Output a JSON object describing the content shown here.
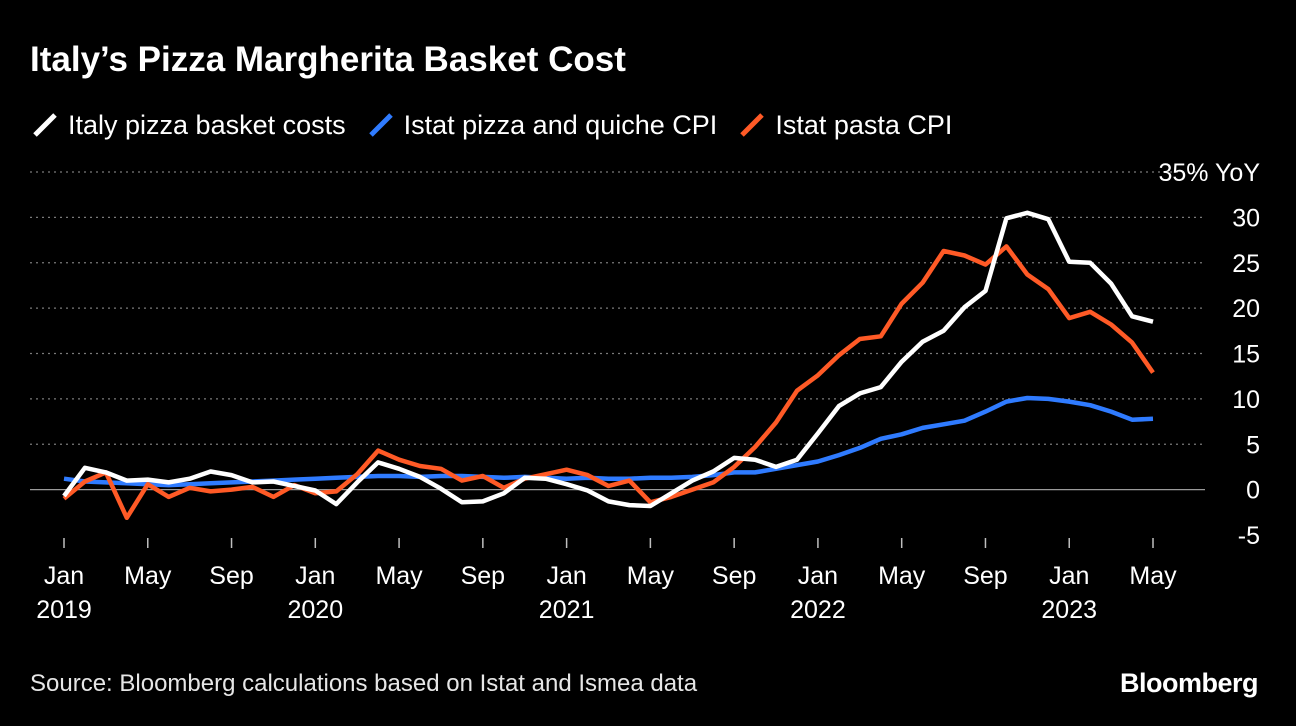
{
  "title": "Italy’s Pizza Margherita Basket Cost",
  "source": "Source: Bloomberg calculations based on Istat and Ismea data",
  "brand": "Bloomberg",
  "colors": {
    "background": "#000000",
    "grid": "#7a7a7a",
    "text": "#ffffff"
  },
  "chart_data": {
    "type": "line",
    "title": "Italy’s Pizza Margherita Basket Cost",
    "ylabel": "35% YoY",
    "ylim": [
      -5,
      35
    ],
    "y_ticks": [
      {
        "value": 35,
        "label": "35% YoY"
      },
      {
        "value": 30,
        "label": "30"
      },
      {
        "value": 25,
        "label": "25"
      },
      {
        "value": 20,
        "label": "20"
      },
      {
        "value": 15,
        "label": "15"
      },
      {
        "value": 10,
        "label": "10"
      },
      {
        "value": 5,
        "label": "5"
      },
      {
        "value": 0,
        "label": "0"
      },
      {
        "value": -5,
        "label": "-5"
      }
    ],
    "x_ticks": [
      {
        "index": 0,
        "label": "Jan",
        "year": "2019"
      },
      {
        "index": 4,
        "label": "May",
        "year": ""
      },
      {
        "index": 8,
        "label": "Sep",
        "year": ""
      },
      {
        "index": 12,
        "label": "Jan",
        "year": "2020"
      },
      {
        "index": 16,
        "label": "May",
        "year": ""
      },
      {
        "index": 20,
        "label": "Sep",
        "year": ""
      },
      {
        "index": 24,
        "label": "Jan",
        "year": "2021"
      },
      {
        "index": 28,
        "label": "May",
        "year": ""
      },
      {
        "index": 32,
        "label": "Sep",
        "year": ""
      },
      {
        "index": 36,
        "label": "Jan",
        "year": "2022"
      },
      {
        "index": 40,
        "label": "May",
        "year": ""
      },
      {
        "index": 44,
        "label": "Sep",
        "year": ""
      },
      {
        "index": 48,
        "label": "Jan",
        "year": "2023"
      },
      {
        "index": 52,
        "label": "May",
        "year": ""
      }
    ],
    "x": [
      "2019-01",
      "2019-02",
      "2019-03",
      "2019-04",
      "2019-05",
      "2019-06",
      "2019-07",
      "2019-08",
      "2019-09",
      "2019-10",
      "2019-11",
      "2019-12",
      "2020-01",
      "2020-02",
      "2020-03",
      "2020-04",
      "2020-05",
      "2020-06",
      "2020-07",
      "2020-08",
      "2020-09",
      "2020-10",
      "2020-11",
      "2020-12",
      "2021-01",
      "2021-02",
      "2021-03",
      "2021-04",
      "2021-05",
      "2021-06",
      "2021-07",
      "2021-08",
      "2021-09",
      "2021-10",
      "2021-11",
      "2021-12",
      "2022-01",
      "2022-02",
      "2022-03",
      "2022-04",
      "2022-05",
      "2022-06",
      "2022-07",
      "2022-08",
      "2022-09",
      "2022-10",
      "2022-11",
      "2022-12",
      "2023-01",
      "2023-02",
      "2023-03",
      "2023-04",
      "2023-05"
    ],
    "series": [
      {
        "name": "Istat pizza and quiche CPI",
        "color": "#2f7bff",
        "values": [
          1.2,
          0.9,
          0.8,
          0.7,
          0.6,
          0.5,
          0.6,
          0.7,
          0.8,
          0.9,
          1.0,
          1.1,
          1.2,
          1.3,
          1.4,
          1.5,
          1.5,
          1.4,
          1.5,
          1.5,
          1.4,
          1.3,
          1.4,
          1.3,
          1.2,
          1.3,
          1.2,
          1.2,
          1.3,
          1.3,
          1.4,
          1.6,
          1.9,
          1.9,
          2.3,
          2.7,
          3.1,
          3.8,
          4.6,
          5.6,
          6.1,
          6.8,
          7.2,
          7.6,
          8.6,
          9.7,
          10.1,
          10.0,
          9.7,
          9.3,
          8.6,
          7.7,
          7.8
        ]
      },
      {
        "name": "Istat pasta CPI",
        "color": "#ff5a26",
        "values": [
          -1.0,
          0.9,
          1.9,
          -3.1,
          0.6,
          -0.8,
          0.2,
          -0.2,
          0.0,
          0.3,
          -0.8,
          0.5,
          -0.4,
          -0.2,
          1.7,
          4.3,
          3.3,
          2.6,
          2.3,
          1.0,
          1.5,
          0.2,
          1.2,
          1.7,
          2.2,
          1.6,
          0.4,
          1.0,
          -1.4,
          -0.8,
          0.0,
          0.8,
          2.5,
          4.7,
          7.4,
          10.9,
          12.6,
          14.8,
          16.6,
          16.9,
          20.5,
          22.8,
          26.3,
          25.8,
          24.8,
          26.8,
          23.7,
          22.1,
          18.9,
          19.6,
          18.2,
          16.2,
          12.9
        ]
      },
      {
        "name": "Italy pizza basket costs",
        "color": "#ffffff",
        "values": [
          -0.7,
          2.4,
          1.9,
          1.0,
          1.1,
          0.8,
          1.2,
          2.0,
          1.6,
          0.8,
          0.9,
          0.4,
          -0.1,
          -1.6,
          0.8,
          3.0,
          2.3,
          1.4,
          0.1,
          -1.4,
          -1.3,
          -0.4,
          1.3,
          1.2,
          0.6,
          -0.1,
          -1.3,
          -1.7,
          -1.8,
          -0.4,
          1.0,
          2.0,
          3.5,
          3.3,
          2.5,
          3.3,
          6.2,
          9.2,
          10.6,
          11.3,
          14.1,
          16.3,
          17.5,
          20.1,
          21.9,
          29.9,
          30.5,
          29.8,
          25.1,
          25.0,
          22.7,
          19.1,
          18.5
        ]
      }
    ],
    "grid": true,
    "legend": "top-left"
  },
  "legend": [
    {
      "label": "Italy pizza basket costs",
      "color": "#ffffff"
    },
    {
      "label": "Istat pizza and quiche CPI",
      "color": "#2f7bff"
    },
    {
      "label": "Istat pasta CPI",
      "color": "#ff5a26"
    }
  ]
}
